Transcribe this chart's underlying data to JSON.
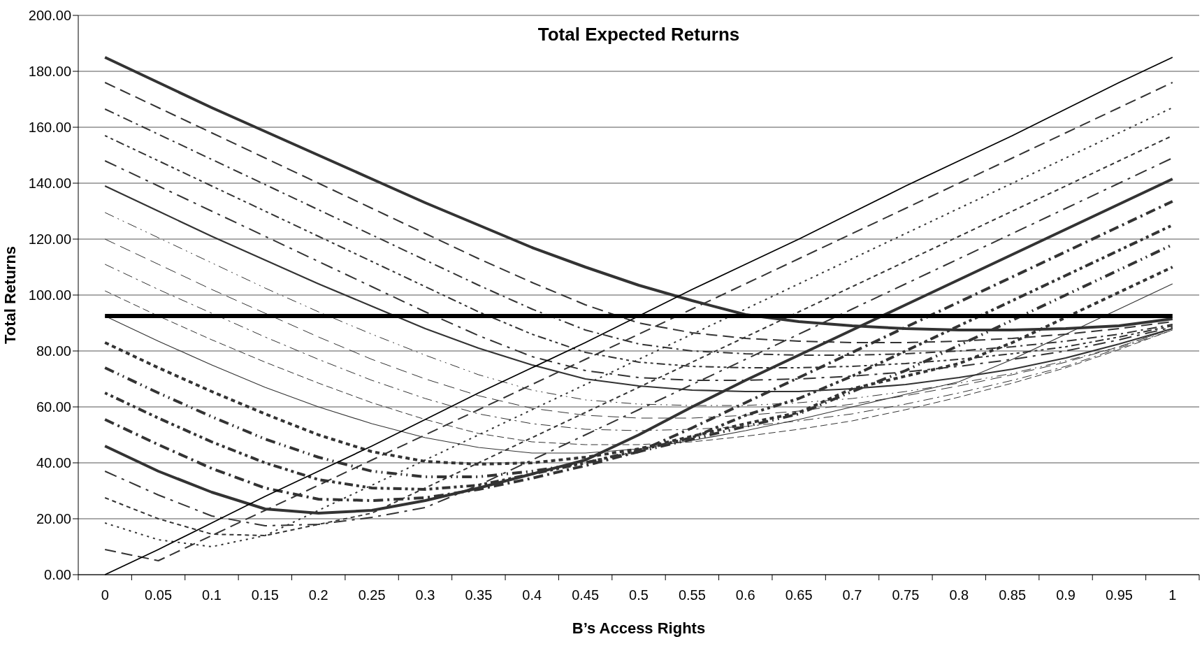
{
  "chart_data": {
    "type": "line",
    "title": "Total Expected Returns",
    "xlabel": "B’s Access Rights",
    "ylabel": "Total Returns",
    "categories": [
      "0",
      "0.05",
      "0.1",
      "0.15",
      "0.2",
      "0.25",
      "0.3",
      "0.35",
      "0.4",
      "0.45",
      "0.5",
      "0.55",
      "0.6",
      "0.65",
      "0.7",
      "0.75",
      "0.8",
      "0.85",
      "0.9",
      "0.95",
      "1"
    ],
    "ylim": [
      0,
      200
    ],
    "yticks": [
      {
        "value": 0,
        "label": "0.00"
      },
      {
        "value": 20,
        "label": "20.00"
      },
      {
        "value": 40,
        "label": "40.00"
      },
      {
        "value": 60,
        "label": "60.00"
      },
      {
        "value": 80,
        "label": "80.00"
      },
      {
        "value": 100,
        "label": "100.00"
      },
      {
        "value": 120,
        "label": "120.00"
      },
      {
        "value": 140,
        "label": "140.00"
      },
      {
        "value": 160,
        "label": "160.00"
      },
      {
        "value": 180,
        "label": "180.00"
      },
      {
        "value": 200,
        "label": "200.00"
      }
    ],
    "grid": "y",
    "marker": "none",
    "series": [
      {
        "color": "#333333",
        "line_style": "solid",
        "values": [
          185,
          176,
          167,
          158.5,
          150,
          141.5,
          133,
          125,
          117,
          110,
          103.5,
          98,
          93,
          90.5,
          89,
          88,
          87.5,
          87.5,
          88,
          89,
          91.5
        ]
      },
      {
        "color": "#333333",
        "line_style": "dashed",
        "values": [
          176,
          167,
          158,
          149,
          140,
          131,
          122,
          113,
          104.5,
          96.5,
          90,
          86.5,
          84.5,
          83.5,
          83,
          83,
          83.5,
          84.5,
          86,
          88,
          90.5
        ]
      },
      {
        "color": "#333333",
        "line_style": "dashed",
        "values": [
          166.5,
          157.5,
          148.5,
          139.5,
          130.5,
          121.5,
          112.5,
          103.5,
          95,
          87.5,
          82.5,
          80,
          79,
          78.5,
          78.5,
          79,
          80,
          81.5,
          83.5,
          86,
          89.5
        ]
      },
      {
        "color": "#333333",
        "line_style": "dotted",
        "values": [
          157,
          148,
          139,
          130,
          121,
          112,
          103,
          94,
          86,
          79.5,
          76,
          74.5,
          74,
          74,
          74.5,
          75.5,
          77,
          79,
          81.5,
          85,
          89
        ]
      },
      {
        "color": "#333333",
        "line_style": "dashed",
        "values": [
          148,
          139,
          130,
          121,
          112,
          103,
          94,
          85.5,
          78,
          73,
          70.5,
          69.5,
          69.5,
          70,
          71,
          72.5,
          74.5,
          77,
          80,
          84,
          88.5
        ]
      },
      {
        "color": "#333333",
        "line_style": "solid",
        "values": [
          139,
          130,
          121,
          112.5,
          104,
          96,
          88,
          81,
          75,
          70,
          67.5,
          66,
          65.5,
          65.5,
          66.5,
          68,
          70.5,
          73.5,
          77.5,
          82.5,
          88
        ]
      },
      {
        "color": "#333333",
        "line_style": "dashed",
        "values": [
          129.5,
          120.5,
          111.5,
          102.5,
          94,
          86,
          78.5,
          71.5,
          66,
          62.5,
          61,
          60.5,
          60.5,
          61.5,
          63,
          65.5,
          68.5,
          72,
          76.5,
          81.5,
          88
        ]
      },
      {
        "color": "#333333",
        "line_style": "dashed",
        "values": [
          120,
          111,
          102,
          93.5,
          85,
          77,
          70,
          64,
          59.5,
          57,
          56,
          56,
          57,
          58.5,
          61,
          64,
          67.5,
          71.5,
          76,
          81.5,
          88
        ]
      },
      {
        "color": "#333333",
        "line_style": "dashed",
        "values": [
          111,
          102,
          93.5,
          85,
          77,
          69.5,
          63,
          57.5,
          54,
          52,
          51.5,
          52,
          53,
          55,
          57.5,
          61,
          65,
          69.5,
          74.5,
          81,
          87.5
        ]
      },
      {
        "color": "#333333",
        "line_style": "dashed",
        "values": [
          101.5,
          92.5,
          84,
          76,
          68.5,
          61.5,
          55.5,
          50.5,
          47.5,
          46.5,
          46.5,
          47.5,
          49.5,
          52,
          55,
          59,
          63.5,
          68.5,
          74,
          80.5,
          87.5
        ]
      },
      {
        "color": "#333333",
        "line_style": "solid",
        "values": [
          92.5,
          83.5,
          75,
          67,
          60,
          54,
          49,
          45.5,
          43.5,
          43.5,
          45,
          48,
          51.5,
          55.5,
          60,
          64.5,
          69,
          77,
          86,
          95,
          104
        ]
      },
      {
        "color": "#333333",
        "line_style": "dashed",
        "values": [
          83,
          74,
          65.5,
          57.5,
          50,
          44,
          40.5,
          39.5,
          40,
          42,
          45,
          49.5,
          54,
          58,
          66.5,
          71,
          75.5,
          83,
          92,
          101,
          110
        ]
      },
      {
        "color": "#333333",
        "line_style": "dashed",
        "values": [
          74,
          65,
          56.5,
          48.5,
          42,
          37,
          35,
          35,
          37,
          40,
          44,
          48.5,
          53,
          57.5,
          65.5,
          73,
          82,
          91,
          100,
          109,
          118
        ]
      },
      {
        "color": "#333333",
        "line_style": "dotted",
        "values": [
          65,
          56,
          47.5,
          40,
          34,
          31,
          30.5,
          32,
          36,
          40,
          44.5,
          49,
          57,
          63,
          71,
          80,
          89,
          98,
          107,
          116,
          125
        ]
      },
      {
        "color": "#333333",
        "line_style": "dashed",
        "values": [
          55.5,
          46.5,
          38,
          31,
          27,
          26.5,
          27.5,
          30.5,
          34.5,
          39,
          44,
          52.5,
          61.5,
          70.5,
          79.5,
          88.5,
          97.5,
          106.5,
          115.5,
          124.5,
          133.5
        ]
      },
      {
        "color": "#333333",
        "line_style": "solid",
        "values": [
          46,
          37,
          29.5,
          23.5,
          22,
          23,
          26.5,
          31,
          36,
          41,
          50,
          60,
          69.5,
          78.5,
          87.5,
          96.5,
          105.5,
          114.5,
          123.5,
          132.5,
          141.5
        ]
      },
      {
        "color": "#333333",
        "line_style": "dashed",
        "values": [
          37,
          28.5,
          21,
          17.5,
          18,
          20.5,
          24,
          32,
          41,
          50,
          59,
          68,
          77,
          86,
          95,
          104,
          113,
          122,
          131,
          140,
          149
        ]
      },
      {
        "color": "#333333",
        "line_style": "dashed",
        "values": [
          27.5,
          20,
          14.5,
          14,
          18,
          22,
          31,
          40,
          49,
          58,
          67,
          76,
          85,
          94,
          103,
          112,
          121,
          130,
          139,
          148,
          157
        ]
      },
      {
        "color": "#333333",
        "line_style": "dotted",
        "values": [
          18.5,
          12.5,
          10,
          14,
          23,
          32,
          41,
          50,
          59,
          68,
          77,
          86,
          95,
          104,
          113,
          122,
          131,
          140,
          149,
          158,
          167
        ]
      },
      {
        "color": "#333333",
        "line_style": "dashed",
        "values": [
          9,
          5,
          14,
          23,
          32,
          41,
          50,
          59,
          68,
          77,
          86,
          95,
          104,
          113,
          122,
          131,
          140,
          149,
          158,
          167,
          176
        ]
      },
      {
        "color": "#000000",
        "line_style": "solid",
        "values": [
          0,
          9,
          18.5,
          28,
          37,
          46,
          55.5,
          65,
          74,
          83,
          92.5,
          102,
          111,
          120,
          129.5,
          139,
          148,
          157,
          166.5,
          176,
          185
        ]
      },
      {
        "color": "#000000",
        "line_style": "solid",
        "values": [
          92.5,
          92.5,
          92.5,
          92.5,
          92.5,
          92.5,
          92.5,
          92.5,
          92.5,
          92.5,
          92.5,
          92.5,
          92.5,
          92.5,
          92.5,
          92.5,
          92.5,
          92.5,
          92.5,
          92.5,
          92.5
        ]
      }
    ]
  }
}
